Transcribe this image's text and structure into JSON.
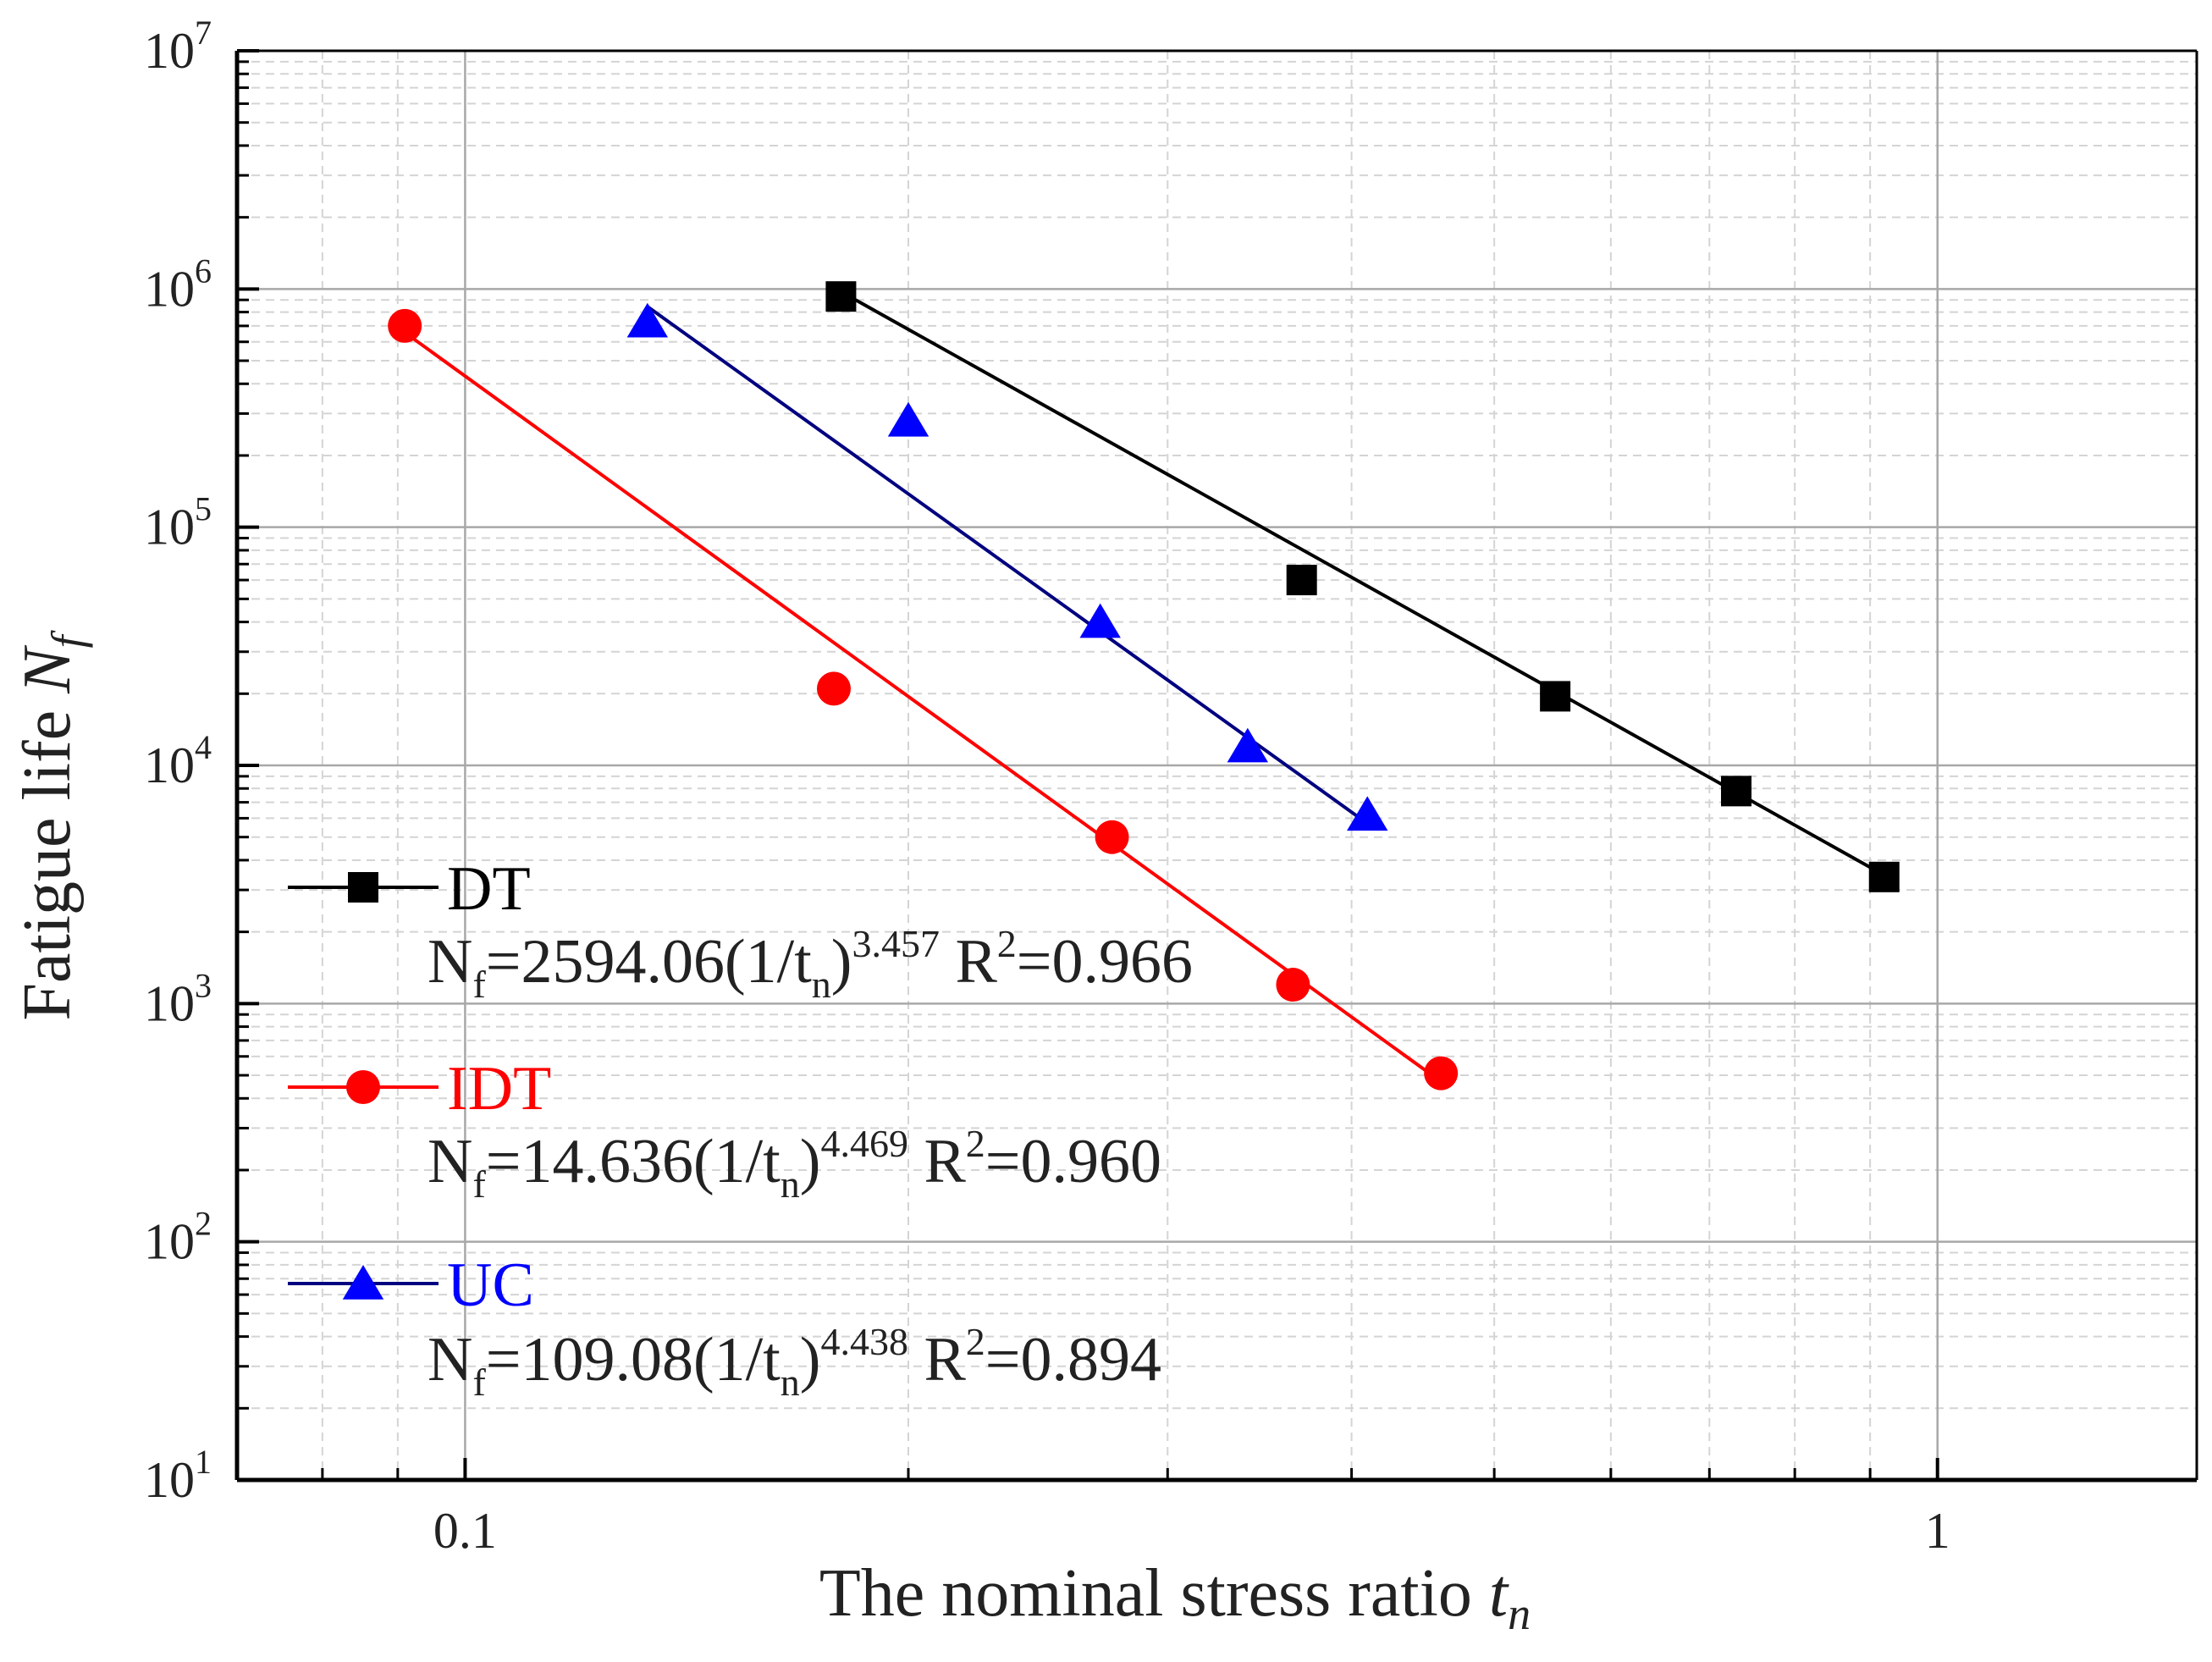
{
  "chart_data": {
    "type": "scatter",
    "xscale": "log",
    "yscale": "log",
    "xlim": [
      0.07,
      1.5
    ],
    "ylim": [
      10,
      10000000
    ],
    "xlabel": {
      "text": "The nominal stress ratio ",
      "var": "t",
      "sub": "n"
    },
    "ylabel": {
      "text": "Fatigue life  ",
      "var": "N",
      "sub": "f"
    },
    "x_ticks": [
      {
        "value": 0.1,
        "label": "0.1"
      },
      {
        "value": 1,
        "label": "1"
      }
    ],
    "y_ticks": [
      {
        "value": 10,
        "base": "10",
        "exp": "1"
      },
      {
        "value": 100,
        "base": "10",
        "exp": "2"
      },
      {
        "value": 1000,
        "base": "10",
        "exp": "3"
      },
      {
        "value": 10000,
        "base": "10",
        "exp": "4"
      },
      {
        "value": 100000,
        "base": "10",
        "exp": "5"
      },
      {
        "value": 1000000,
        "base": "10",
        "exp": "6"
      },
      {
        "value": 10000000,
        "base": "10",
        "exp": "7"
      }
    ],
    "grid": true,
    "legend_position": "lower-left",
    "series": [
      {
        "name": "DT",
        "color": "#000000",
        "marker": "square",
        "points": [
          {
            "x": 0.18,
            "y": 930000
          },
          {
            "x": 0.37,
            "y": 60000
          },
          {
            "x": 0.55,
            "y": 19500
          },
          {
            "x": 0.73,
            "y": 7800
          },
          {
            "x": 0.92,
            "y": 3400
          }
        ],
        "fit": {
          "coef": 2594.06,
          "exp": 3.457,
          "x_range": [
            0.18,
            0.92
          ]
        },
        "equation": {
          "lhs": "N",
          "lhs_sub": "f",
          "body": "=2594.06(1/t",
          "body_sub": "n",
          "paren": ")",
          "power": "3.457",
          "r_label": " R",
          "r_sup": "2",
          "r_value": "=0.966"
        }
      },
      {
        "name": "IDT",
        "color": "#ff0000",
        "marker": "circle",
        "points": [
          {
            "x": 0.091,
            "y": 700000
          },
          {
            "x": 0.178,
            "y": 21000
          },
          {
            "x": 0.275,
            "y": 5000
          },
          {
            "x": 0.365,
            "y": 1200
          },
          {
            "x": 0.46,
            "y": 510
          }
        ],
        "fit": {
          "coef": 14.636,
          "exp": 4.469,
          "x_range": [
            0.091,
            0.46
          ]
        },
        "equation": {
          "lhs": "N",
          "lhs_sub": "f",
          "body": "=14.636(1/t",
          "body_sub": "n",
          "paren": ")",
          "power": "4.469",
          "r_label": " R",
          "r_sup": "2",
          "r_value": "=0.960"
        }
      },
      {
        "name": "UC",
        "color": "#0000ff",
        "line_color": "#000080",
        "marker": "triangle",
        "points": [
          {
            "x": 0.133,
            "y": 730000
          },
          {
            "x": 0.2,
            "y": 280000
          },
          {
            "x": 0.27,
            "y": 40000
          },
          {
            "x": 0.34,
            "y": 12000
          },
          {
            "x": 0.41,
            "y": 6200
          }
        ],
        "fit": {
          "coef": 109.08,
          "exp": 4.438,
          "x_range": [
            0.133,
            0.41
          ]
        },
        "equation": {
          "lhs": "N",
          "lhs_sub": "f",
          "body": "=109.08(1/t",
          "body_sub": "n",
          "paren": ")",
          "power": "4.438",
          "r_label": " R",
          "r_sup": "2",
          "r_value": "=0.894"
        }
      }
    ]
  }
}
